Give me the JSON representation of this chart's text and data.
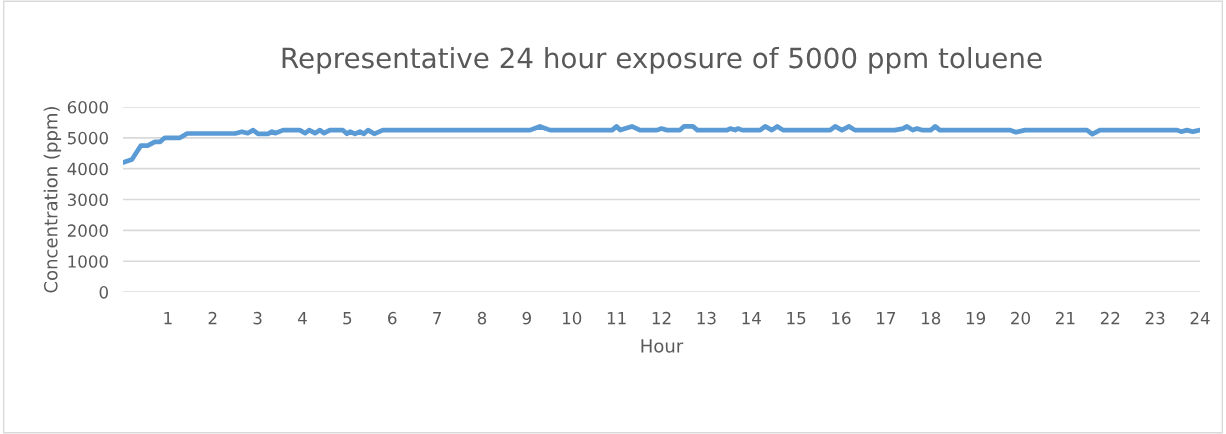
{
  "chart_data": {
    "type": "line",
    "title": "Representative 24 hour exposure of 5000 ppm toluene",
    "xlabel": "Hour",
    "ylabel": "Concentration (ppm)",
    "x": [
      0,
      0.2,
      0.4,
      0.55,
      0.71,
      0.83,
      0.93,
      1.27,
      1.43,
      2.5,
      2.65,
      2.78,
      2.9,
      3.01,
      3.23,
      3.32,
      3.39,
      3.57,
      3.94,
      4.06,
      4.15,
      4.28,
      4.39,
      4.48,
      4.61,
      4.9,
      4.99,
      5.06,
      5.17,
      5.28,
      5.37,
      5.46,
      5.6,
      5.79,
      9.07,
      9.29,
      9.52,
      10.9,
      11.0,
      11.08,
      11.34,
      11.52,
      11.9,
      12.0,
      12.12,
      12.41,
      12.5,
      12.7,
      12.8,
      13.46,
      13.53,
      13.64,
      13.7,
      13.8,
      14.2,
      14.31,
      14.46,
      14.58,
      14.71,
      15.76,
      15.87,
      16.02,
      16.18,
      16.31,
      17.2,
      17.38,
      17.47,
      17.6,
      17.69,
      17.8,
      18.0,
      18.1,
      18.2,
      19.77,
      19.9,
      20.1,
      21.48,
      21.6,
      21.77,
      23.49,
      23.58,
      23.71,
      23.84,
      24.0
    ],
    "series": [
      {
        "color": "#5b9bd5",
        "values": [
          4200,
          4300,
          4750,
          4750,
          4870,
          4870,
          5000,
          5000,
          5140,
          5140,
          5200,
          5150,
          5250,
          5130,
          5130,
          5200,
          5150,
          5250,
          5250,
          5150,
          5250,
          5150,
          5250,
          5150,
          5250,
          5250,
          5130,
          5200,
          5130,
          5200,
          5130,
          5250,
          5130,
          5250,
          5250,
          5370,
          5250,
          5250,
          5370,
          5250,
          5370,
          5250,
          5250,
          5300,
          5250,
          5250,
          5370,
          5370,
          5250,
          5250,
          5300,
          5250,
          5300,
          5250,
          5250,
          5370,
          5250,
          5370,
          5250,
          5250,
          5370,
          5250,
          5370,
          5250,
          5250,
          5300,
          5370,
          5250,
          5300,
          5250,
          5250,
          5370,
          5250,
          5250,
          5180,
          5250,
          5250,
          5120,
          5250,
          5250,
          5200,
          5250,
          5200,
          5250
        ]
      }
    ],
    "xlim": [
      0,
      24
    ],
    "xticks": [
      1,
      2,
      3,
      4,
      5,
      6,
      7,
      8,
      9,
      10,
      11,
      12,
      13,
      14,
      15,
      16,
      17,
      18,
      19,
      20,
      21,
      22,
      23,
      24
    ],
    "ylim": [
      0,
      6000
    ],
    "yticks": [
      0,
      1000,
      2000,
      3000,
      4000,
      5000,
      6000
    ],
    "grid": "y",
    "marker": "none",
    "line_style": "solid"
  }
}
